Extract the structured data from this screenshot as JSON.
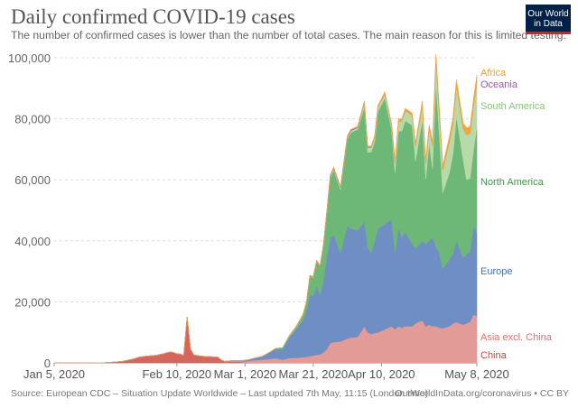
{
  "header": {
    "title": "Daily confirmed COVID-19 cases",
    "subtitle": "The number of confirmed cases is lower than the number of total cases. The main reason for this is limited testing.",
    "logo_line1": "Our World",
    "logo_line2": "in Data"
  },
  "footer": {
    "source": "Source: European CDC – Situation Update Worldwide – Last updated 7th May, 11:15 (London time)",
    "credit": "OurWorldInData.org/coronavirus • CC BY"
  },
  "chart_data": {
    "type": "area",
    "stacked": true,
    "title": "Daily confirmed COVID-19 cases",
    "x_unit": "days since Jan 5, 2020",
    "x_range": [
      0,
      124
    ],
    "ylim": [
      0,
      100000
    ],
    "value_unit": "thousands of cases",
    "grid": true,
    "legend": "right (inline labels)",
    "y_ticks": [
      {
        "v": 0,
        "label": "0"
      },
      {
        "v": 20000,
        "label": "20,000"
      },
      {
        "v": 40000,
        "label": "40,000"
      },
      {
        "v": 60000,
        "label": "60,000"
      },
      {
        "v": 80000,
        "label": "80,000"
      },
      {
        "v": 100000,
        "label": "100,000"
      }
    ],
    "x_ticks": [
      {
        "day": 0,
        "label": "Jan 5, 2020"
      },
      {
        "day": 36,
        "label": "Feb 10, 2020"
      },
      {
        "day": 56,
        "label": "Mar 1, 2020"
      },
      {
        "day": 76,
        "label": "Mar 21, 2020"
      },
      {
        "day": 96,
        "label": "Apr 10, 2020"
      },
      {
        "day": 124,
        "label": "May 8, 2020"
      }
    ],
    "series": [
      {
        "name": "China",
        "color": "#d86460",
        "label_color": "#d73c3c"
      },
      {
        "name": "Asia excl. China",
        "color": "#e39b97",
        "label_color": "#e0706a"
      },
      {
        "name": "Europe",
        "color": "#6e8ec4",
        "label_color": "#4a6fb5"
      },
      {
        "name": "North America",
        "color": "#6eb877",
        "label_color": "#3a9a45"
      },
      {
        "name": "South America",
        "color": "#b7daa8",
        "label_color": "#8cc47c"
      },
      {
        "name": "Oceania",
        "color": "#a652ba",
        "label_color": "#a64cc0"
      },
      {
        "name": "Africa",
        "color": "#f5a53a",
        "label_color": "#f0a020"
      }
    ],
    "columns": [
      "day",
      "China",
      "Asia excl. China",
      "Europe",
      "North America",
      "South America",
      "Oceania",
      "Africa"
    ],
    "rows": [
      [
        0,
        0.01,
        0,
        0,
        0,
        0,
        0,
        0
      ],
      [
        10,
        0.02,
        0,
        0,
        0,
        0,
        0,
        0
      ],
      [
        15,
        0.1,
        0,
        0,
        0,
        0,
        0,
        0
      ],
      [
        18,
        0.3,
        0,
        0,
        0,
        0,
        0,
        0
      ],
      [
        20,
        0.5,
        0,
        0,
        0,
        0,
        0,
        0
      ],
      [
        23,
        1.2,
        0,
        0,
        0,
        0,
        0,
        0
      ],
      [
        25,
        1.9,
        0,
        0,
        0,
        0,
        0,
        0
      ],
      [
        27,
        2.2,
        0,
        0,
        0,
        0,
        0,
        0
      ],
      [
        30,
        2.5,
        0,
        0,
        0,
        0,
        0,
        0
      ],
      [
        32,
        3.0,
        0,
        0,
        0,
        0,
        0,
        0
      ],
      [
        34,
        3.6,
        0,
        0,
        0,
        0,
        0,
        0
      ],
      [
        35,
        3.4,
        0,
        0,
        0,
        0,
        0,
        0
      ],
      [
        36,
        3.0,
        0,
        0,
        0,
        0,
        0,
        0
      ],
      [
        37,
        2.9,
        0,
        0,
        0,
        0,
        0,
        0
      ],
      [
        38,
        2.5,
        0,
        0,
        0,
        0,
        0,
        0
      ],
      [
        39,
        15.1,
        0,
        0,
        0,
        0,
        0,
        0
      ],
      [
        40,
        4.5,
        0,
        0,
        0,
        0,
        0,
        0
      ],
      [
        41,
        2.6,
        0,
        0,
        0,
        0,
        0,
        0
      ],
      [
        43,
        2.2,
        0,
        0,
        0,
        0,
        0,
        0
      ],
      [
        46,
        2.0,
        0,
        0,
        0,
        0,
        0,
        0
      ],
      [
        48,
        1.9,
        0,
        0,
        0,
        0,
        0,
        0
      ],
      [
        49,
        1.0,
        0,
        0,
        0,
        0,
        0,
        0
      ],
      [
        50,
        0.4,
        0.1,
        0,
        0,
        0,
        0,
        0
      ],
      [
        52,
        0.5,
        0.2,
        0,
        0,
        0,
        0,
        0
      ],
      [
        54,
        0.4,
        0.2,
        0.1,
        0,
        0,
        0,
        0
      ],
      [
        55,
        0.2,
        0.3,
        0.2,
        0,
        0,
        0,
        0
      ],
      [
        57,
        0.1,
        0.5,
        0.4,
        0,
        0,
        0,
        0
      ],
      [
        59,
        0.1,
        0.8,
        0.7,
        0,
        0,
        0,
        0
      ],
      [
        61,
        0.1,
        1.0,
        1.0,
        0,
        0,
        0,
        0
      ],
      [
        63,
        0.05,
        1.2,
        2.0,
        0.1,
        0,
        0,
        0
      ],
      [
        65,
        0.05,
        1.5,
        3.0,
        0.2,
        0,
        0,
        0
      ],
      [
        67,
        0.05,
        1.0,
        3.5,
        0.3,
        0.1,
        0,
        0
      ],
      [
        69,
        0.1,
        1.5,
        6.9,
        0.2,
        0.2,
        0.05,
        0.05
      ],
      [
        71,
        0.1,
        1.6,
        9.3,
        0.7,
        0.2,
        0.05,
        0.05
      ],
      [
        73,
        0.1,
        1.8,
        12.1,
        1.7,
        0.2,
        0.05,
        0.05
      ],
      [
        74,
        0.1,
        1.9,
        15.0,
        2.7,
        0.2,
        0.05,
        0.05
      ],
      [
        75,
        0.1,
        2.1,
        20.1,
        6.1,
        0.2,
        0.05,
        0.05
      ],
      [
        76,
        0.1,
        2.3,
        19.6,
        6.0,
        0.2,
        0.05,
        0.05
      ],
      [
        77,
        0.1,
        2.5,
        22.7,
        8.0,
        0.2,
        0.05,
        0.05
      ],
      [
        78,
        0.1,
        2.7,
        19.5,
        9.4,
        0.2,
        0.05,
        0.05
      ],
      [
        79,
        0.1,
        3.4,
        23.7,
        11.5,
        0.2,
        0.05,
        0.05
      ],
      [
        80,
        0.1,
        4.4,
        30.5,
        14.0,
        0.6,
        0.2,
        0.2
      ],
      [
        81,
        0.1,
        6.4,
        34.5,
        19.7,
        0.6,
        0.2,
        0.2
      ],
      [
        82,
        0.1,
        6.7,
        35.2,
        21.2,
        0.6,
        0.2,
        0.2
      ],
      [
        84,
        0.1,
        6.9,
        29.0,
        20.8,
        0.6,
        0.2,
        0.2
      ],
      [
        86,
        0.1,
        7.9,
        37.0,
        28.5,
        0.6,
        0.2,
        0.2
      ],
      [
        87,
        0.1,
        8.2,
        35.7,
        31.5,
        0.6,
        0.2,
        0.2
      ],
      [
        89,
        0.1,
        8.4,
        35.0,
        33.0,
        0.6,
        0.2,
        0.2
      ],
      [
        91,
        0.1,
        11.9,
        34.4,
        37.5,
        1.5,
        0.1,
        0.4
      ],
      [
        92,
        0.1,
        9.9,
        28.0,
        31.1,
        1.5,
        0.1,
        0.4
      ],
      [
        93,
        0.1,
        9.4,
        26.5,
        33.1,
        1.5,
        0.1,
        0.4
      ],
      [
        94,
        0.1,
        9.7,
        30.2,
        32.5,
        1.5,
        0.1,
        0.4
      ],
      [
        95,
        0.1,
        9.9,
        34.0,
        38.4,
        1.5,
        0.1,
        0.4
      ],
      [
        97,
        0.1,
        10.9,
        34.5,
        41.3,
        1.5,
        0.1,
        0.4
      ],
      [
        99,
        0.1,
        11.9,
        35.0,
        29.5,
        1.5,
        0.1,
        0.4
      ],
      [
        100,
        0.1,
        10.9,
        25.0,
        26.2,
        3.3,
        0.05,
        0.65
      ],
      [
        101,
        0.1,
        11.9,
        32.5,
        31.5,
        3.3,
        0.05,
        0.65
      ],
      [
        102,
        0.1,
        11.4,
        29.5,
        35.0,
        3.3,
        0.05,
        0.65
      ],
      [
        103,
        0.1,
        11.9,
        31.0,
        36.4,
        3.3,
        0.05,
        0.65
      ],
      [
        105,
        0.1,
        11.9,
        27.0,
        38.9,
        3.3,
        0.05,
        0.65
      ],
      [
        106,
        0.1,
        12.9,
        24.5,
        28.6,
        5.0,
        0.05,
        0.95
      ],
      [
        108,
        0.1,
        13.9,
        26.0,
        39.9,
        5.0,
        0.05,
        0.95
      ],
      [
        109,
        0.1,
        11.9,
        27.0,
        21.2,
        5.0,
        0.05,
        0.95
      ],
      [
        110,
        0.1,
        12.4,
        27.5,
        32.0,
        5.0,
        0.05,
        0.95
      ],
      [
        111,
        0.1,
        11.9,
        29.0,
        22.6,
        7.6,
        0.04,
        1.36
      ],
      [
        112,
        0.1,
        11.9,
        26.0,
        54.2,
        7.6,
        0.04,
        1.36
      ],
      [
        113,
        0.1,
        11.4,
        24.5,
        38.4,
        7.6,
        0.04,
        1.36
      ],
      [
        114,
        0.1,
        11.3,
        19.6,
        24.7,
        7.6,
        0.04,
        1.36
      ],
      [
        116,
        0.1,
        11.9,
        22.0,
        28.5,
        10.3,
        0.03,
        1.67
      ],
      [
        117,
        0.1,
        12.9,
        23.0,
        32.5,
        10.3,
        0.03,
        1.67
      ],
      [
        118,
        0.1,
        13.3,
        26.6,
        40.8,
        10.3,
        0.03,
        1.67
      ],
      [
        120,
        0.1,
        12.4,
        22.0,
        32.0,
        10.3,
        0.03,
        1.67
      ],
      [
        121,
        0.1,
        12.9,
        22.5,
        24.5,
        14.8,
        0.03,
        2.17
      ],
      [
        122,
        0.1,
        13.4,
        23.1,
        23.9,
        14.8,
        0.03,
        2.17
      ],
      [
        123,
        0.1,
        15.8,
        29.1,
        24.4,
        14.8,
        0.03,
        2.17
      ],
      [
        124,
        0.1,
        15.3,
        27.2,
        34.7,
        14.8,
        0.03,
        2.17
      ]
    ]
  }
}
